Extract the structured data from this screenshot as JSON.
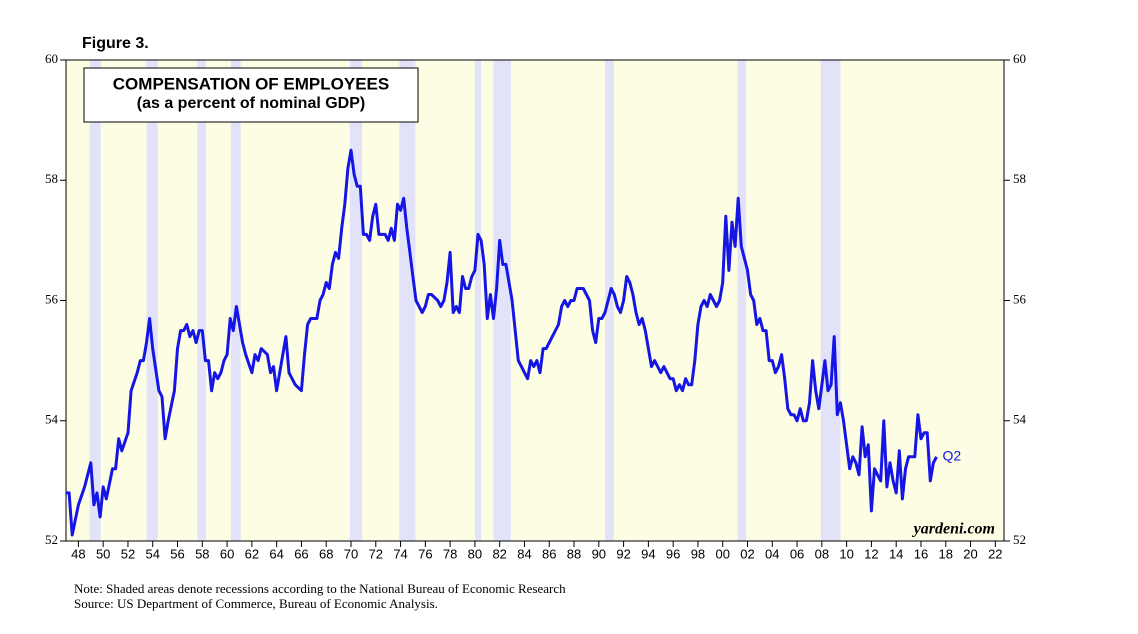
{
  "chart_data": {
    "type": "line",
    "figure_label": "Figure 3.",
    "title": "COMPENSATION OF EMPLOYEES",
    "subtitle": "(as a percent of nominal GDP)",
    "annotation": "Q2",
    "watermark": "yardeni.com",
    "notes": [
      "Note: Shaded areas denote recessions according to the National Bureau of Economic Research",
      "Source: US Department of Commerce, Bureau of Economic Analysis."
    ],
    "color": "#1515e6",
    "recession_color": "#e2e3f8",
    "background": "#fdfde4",
    "recessions": [
      [
        1948.9,
        1949.8
      ],
      [
        1953.5,
        1954.4
      ],
      [
        1957.6,
        1958.3
      ],
      [
        1960.3,
        1961.1
      ],
      [
        1969.9,
        1970.9
      ],
      [
        1973.9,
        1975.2
      ],
      [
        1980.0,
        1980.5
      ],
      [
        1981.5,
        1982.9
      ],
      [
        1990.5,
        1991.2
      ],
      [
        2001.2,
        2001.9
      ],
      [
        2007.9,
        2009.5
      ]
    ],
    "xlim": [
      1947,
      2022.7
    ],
    "ylim": [
      52,
      60
    ],
    "yticks": [
      52,
      54,
      56,
      58,
      60
    ],
    "xticks": [
      {
        "value": 1948,
        "label": "48"
      },
      {
        "value": 1950,
        "label": "50"
      },
      {
        "value": 1952,
        "label": "52"
      },
      {
        "value": 1954,
        "label": "54"
      },
      {
        "value": 1956,
        "label": "56"
      },
      {
        "value": 1958,
        "label": "58"
      },
      {
        "value": 1960,
        "label": "60"
      },
      {
        "value": 1962,
        "label": "62"
      },
      {
        "value": 1964,
        "label": "64"
      },
      {
        "value": 1966,
        "label": "66"
      },
      {
        "value": 1968,
        "label": "68"
      },
      {
        "value": 1970,
        "label": "70"
      },
      {
        "value": 1972,
        "label": "72"
      },
      {
        "value": 1974,
        "label": "74"
      },
      {
        "value": 1976,
        "label": "76"
      },
      {
        "value": 1978,
        "label": "78"
      },
      {
        "value": 1980,
        "label": "80"
      },
      {
        "value": 1982,
        "label": "82"
      },
      {
        "value": 1984,
        "label": "84"
      },
      {
        "value": 1986,
        "label": "86"
      },
      {
        "value": 1988,
        "label": "88"
      },
      {
        "value": 1990,
        "label": "90"
      },
      {
        "value": 1992,
        "label": "92"
      },
      {
        "value": 1994,
        "label": "94"
      },
      {
        "value": 1996,
        "label": "96"
      },
      {
        "value": 1998,
        "label": "98"
      },
      {
        "value": 2000,
        "label": "00"
      },
      {
        "value": 2002,
        "label": "02"
      },
      {
        "value": 2004,
        "label": "04"
      },
      {
        "value": 2006,
        "label": "06"
      },
      {
        "value": 2008,
        "label": "08"
      },
      {
        "value": 2010,
        "label": "10"
      },
      {
        "value": 2012,
        "label": "12"
      },
      {
        "value": 2014,
        "label": "14"
      },
      {
        "value": 2016,
        "label": "16"
      },
      {
        "value": 2018,
        "label": "18"
      },
      {
        "value": 2020,
        "label": "20"
      },
      {
        "value": 2022,
        "label": "22"
      }
    ],
    "x": [
      1947.0,
      1947.25,
      1947.5,
      1948.0,
      1948.5,
      1949.0,
      1949.25,
      1949.5,
      1949.75,
      1950.0,
      1950.25,
      1950.75,
      1951.0,
      1951.25,
      1951.5,
      1952.0,
      1952.25,
      1952.75,
      1953.0,
      1953.25,
      1953.5,
      1953.75,
      1954.0,
      1954.5,
      1954.75,
      1955.0,
      1955.25,
      1955.75,
      1956.0,
      1956.25,
      1956.5,
      1956.75,
      1957.0,
      1957.25,
      1957.5,
      1957.75,
      1958.0,
      1958.25,
      1958.5,
      1958.75,
      1959.0,
      1959.25,
      1959.5,
      1959.75,
      1960.0,
      1960.25,
      1960.5,
      1960.75,
      1961.0,
      1961.25,
      1961.5,
      1962.0,
      1962.25,
      1962.5,
      1962.75,
      1963.25,
      1963.5,
      1963.75,
      1964.0,
      1964.5,
      1964.75,
      1965.0,
      1965.25,
      1965.5,
      1966.0,
      1966.25,
      1966.5,
      1966.75,
      1967.25,
      1967.5,
      1967.75,
      1968.0,
      1968.25,
      1968.5,
      1968.75,
      1969.0,
      1969.25,
      1969.5,
      1969.75,
      1970.0,
      1970.25,
      1970.5,
      1970.75,
      1971.0,
      1971.25,
      1971.5,
      1971.75,
      1972.0,
      1972.25,
      1972.5,
      1972.75,
      1973.0,
      1973.25,
      1973.5,
      1973.75,
      1974.0,
      1974.25,
      1974.5,
      1974.75,
      1975.0,
      1975.25,
      1975.5,
      1975.75,
      1976.0,
      1976.25,
      1976.5,
      1977.0,
      1977.25,
      1977.5,
      1977.75,
      1978.0,
      1978.25,
      1978.5,
      1978.75,
      1979.0,
      1979.25,
      1979.5,
      1979.75,
      1980.0,
      1980.25,
      1980.5,
      1980.75,
      1981.0,
      1981.25,
      1981.5,
      1981.75,
      1982.0,
      1982.25,
      1982.5,
      1982.75,
      1983.0,
      1983.5,
      1983.75,
      1984.0,
      1984.25,
      1984.5,
      1984.75,
      1985.0,
      1985.25,
      1985.5,
      1985.75,
      1986.25,
      1986.5,
      1986.75,
      1987.0,
      1987.25,
      1987.5,
      1987.75,
      1988.0,
      1988.25,
      1988.5,
      1988.75,
      1989.0,
      1989.25,
      1989.5,
      1989.75,
      1990.0,
      1990.25,
      1990.5,
      1990.75,
      1991.0,
      1991.25,
      1991.5,
      1991.75,
      1992.0,
      1992.25,
      1992.5,
      1992.75,
      1993.0,
      1993.25,
      1993.5,
      1993.75,
      1994.0,
      1994.25,
      1994.5,
      1994.75,
      1995.0,
      1995.25,
      1995.5,
      1995.75,
      1996.0,
      1996.25,
      1996.5,
      1996.75,
      1997.0,
      1997.25,
      1997.5,
      1997.75,
      1998.0,
      1998.25,
      1998.5,
      1998.75,
      1999.0,
      1999.25,
      1999.5,
      1999.75,
      2000.0,
      2000.25,
      2000.5,
      2000.75,
      2001.0,
      2001.25,
      2001.5,
      2001.75,
      2002.0,
      2002.25,
      2002.5,
      2002.75,
      2003.0,
      2003.25,
      2003.5,
      2003.75,
      2004.0,
      2004.25,
      2004.5,
      2004.75,
      2005.0,
      2005.25,
      2005.5,
      2005.75,
      2006.0,
      2006.25,
      2006.5,
      2006.75,
      2007.0,
      2007.25,
      2007.5,
      2007.75,
      2008.0,
      2008.25,
      2008.5,
      2008.75,
      2009.0,
      2009.25,
      2009.5,
      2009.75,
      2010.0,
      2010.25,
      2010.5,
      2010.75,
      2011.0,
      2011.25,
      2011.5,
      2011.75,
      2012.0,
      2012.25,
      2012.5,
      2012.75,
      2013.0,
      2013.25,
      2013.5,
      2013.75,
      2014.0,
      2014.25,
      2014.5,
      2014.75,
      2015.0,
      2015.25,
      2015.5,
      2015.75,
      2016.0,
      2016.25,
      2016.5,
      2016.75,
      2017.0,
      2017.25
    ],
    "values": [
      52.8,
      52.8,
      52.1,
      52.6,
      52.9,
      53.3,
      52.6,
      52.8,
      52.4,
      52.9,
      52.7,
      53.2,
      53.2,
      53.7,
      53.5,
      53.8,
      54.5,
      54.8,
      55.0,
      55.0,
      55.3,
      55.7,
      55.2,
      54.5,
      54.4,
      53.7,
      54.0,
      54.5,
      55.2,
      55.5,
      55.5,
      55.6,
      55.4,
      55.5,
      55.3,
      55.5,
      55.5,
      55.0,
      55.0,
      54.5,
      54.8,
      54.7,
      54.8,
      55.0,
      55.1,
      55.7,
      55.5,
      55.9,
      55.6,
      55.3,
      55.1,
      54.8,
      55.1,
      55.0,
      55.2,
      55.1,
      54.8,
      54.9,
      54.5,
      55.1,
      55.4,
      54.8,
      54.7,
      54.6,
      54.5,
      55.1,
      55.6,
      55.7,
      55.7,
      56.0,
      56.1,
      56.3,
      56.2,
      56.6,
      56.8,
      56.7,
      57.2,
      57.6,
      58.2,
      58.5,
      58.1,
      57.9,
      57.9,
      57.1,
      57.1,
      57.0,
      57.4,
      57.6,
      57.1,
      57.1,
      57.1,
      57.0,
      57.2,
      57.0,
      57.6,
      57.5,
      57.7,
      57.2,
      56.8,
      56.4,
      56.0,
      55.9,
      55.8,
      55.9,
      56.1,
      56.1,
      56.0,
      55.9,
      56.0,
      56.3,
      56.8,
      55.8,
      55.9,
      55.8,
      56.4,
      56.2,
      56.2,
      56.4,
      56.5,
      57.1,
      57.0,
      56.6,
      55.7,
      56.1,
      55.7,
      56.2,
      57.0,
      56.6,
      56.6,
      56.3,
      56.0,
      55.0,
      54.9,
      54.8,
      54.7,
      55.0,
      54.9,
      55.0,
      54.8,
      55.2,
      55.2,
      55.4,
      55.5,
      55.6,
      55.9,
      56.0,
      55.9,
      56.0,
      56.0,
      56.2,
      56.2,
      56.2,
      56.1,
      56.0,
      55.5,
      55.3,
      55.7,
      55.7,
      55.8,
      56.0,
      56.2,
      56.1,
      55.9,
      55.8,
      56.0,
      56.4,
      56.3,
      56.1,
      55.8,
      55.6,
      55.7,
      55.5,
      55.2,
      54.9,
      55.0,
      54.9,
      54.8,
      54.9,
      54.8,
      54.7,
      54.7,
      54.5,
      54.6,
      54.5,
      54.7,
      54.6,
      54.6,
      55.0,
      55.6,
      55.9,
      56.0,
      55.9,
      56.1,
      56.0,
      55.9,
      56.0,
      56.3,
      57.4,
      56.5,
      57.3,
      56.9,
      57.7,
      56.9,
      56.7,
      56.5,
      56.1,
      56.0,
      55.6,
      55.7,
      55.5,
      55.5,
      55.0,
      55.0,
      54.8,
      54.9,
      55.1,
      54.7,
      54.2,
      54.1,
      54.1,
      54.0,
      54.2,
      54.0,
      54.0,
      54.3,
      55.0,
      54.5,
      54.2,
      54.6,
      55.0,
      54.5,
      54.6,
      55.4,
      54.1,
      54.3,
      54.0,
      53.6,
      53.2,
      53.4,
      53.3,
      53.1,
      53.9,
      53.4,
      53.6,
      52.5,
      53.2,
      53.1,
      53.0,
      54.0,
      52.9,
      53.3,
      53.0,
      52.8,
      53.5,
      52.7,
      53.2,
      53.4,
      53.4,
      53.4,
      54.1,
      53.7,
      53.8,
      53.8,
      53.0,
      53.3,
      53.4
    ]
  }
}
